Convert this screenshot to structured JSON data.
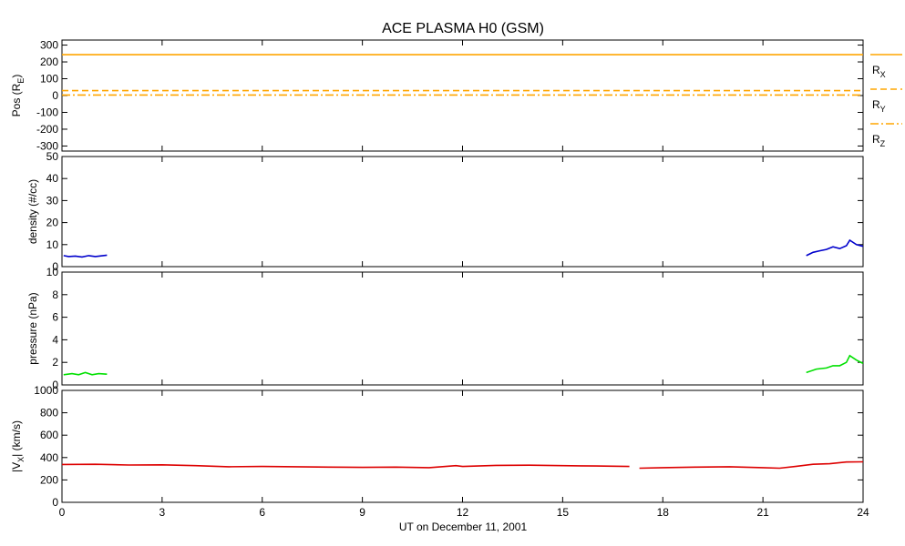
{
  "chart_data": {
    "title": "ACE PLASMA H0 (GSM)",
    "type": "line",
    "x_axis": {
      "label": "UT on December 11, 2001",
      "range": [
        0,
        24
      ],
      "ticks": [
        0,
        3,
        6,
        9,
        12,
        15,
        18,
        21,
        24
      ],
      "tick_labels": [
        "0",
        "3",
        "6",
        "9",
        "12",
        "15",
        "18",
        "21",
        "24"
      ],
      "unit": "hours"
    },
    "panels": [
      {
        "id": "pos",
        "ylabel_main": "Pos (R",
        "ylabel_sub": "E",
        "ylabel_end": ")",
        "ylim": [
          -330,
          330
        ],
        "yticks": [
          300,
          200,
          100,
          0,
          -100,
          -200,
          -300
        ],
        "ytick_labels": [
          "300",
          "200",
          "100",
          "0",
          "-100",
          "-200",
          "-300"
        ],
        "series": [
          {
            "name_main": "R",
            "name_sub": "X",
            "color": "#ffa500",
            "dash": "solid",
            "x": [
              0,
              24
            ],
            "y": [
              243,
              243
            ]
          },
          {
            "name_main": "R",
            "name_sub": "Y",
            "color": "#ffa500",
            "dash": "dashed",
            "x": [
              0,
              24
            ],
            "y": [
              29,
              29
            ]
          },
          {
            "name_main": "R",
            "name_sub": "Z",
            "color": "#ffa500",
            "dash": "dashdot",
            "x": [
              0,
              24
            ],
            "y": [
              3,
              3
            ]
          }
        ]
      },
      {
        "id": "density",
        "ylabel": "density (#/cc)",
        "ylim": [
          0,
          50
        ],
        "yticks": [
          50,
          40,
          30,
          20,
          10,
          0
        ],
        "ytick_labels": [
          "50",
          "40",
          "30",
          "20",
          "10",
          "0"
        ],
        "series": [
          {
            "name": "density",
            "color": "#0000cc",
            "segments": [
              {
                "x": [
                  0.05,
                  0.2,
                  0.4,
                  0.6,
                  0.8,
                  1.0,
                  1.2,
                  1.35
                ],
                "y": [
                  5.0,
                  4.6,
                  4.8,
                  4.4,
                  5.0,
                  4.6,
                  4.9,
                  5.2
                ]
              },
              {
                "x": [
                  22.3,
                  22.5,
                  22.7,
                  22.9,
                  23.1,
                  23.3,
                  23.5,
                  23.6,
                  23.8,
                  24.0
                ],
                "y": [
                  5.0,
                  6.5,
                  7.2,
                  7.8,
                  9.0,
                  8.2,
                  9.5,
                  12.0,
                  10.0,
                  9.2
                ]
              }
            ]
          }
        ]
      },
      {
        "id": "pressure",
        "ylabel": "pressure (nPa)",
        "ylim": [
          0,
          10
        ],
        "yticks": [
          10,
          8,
          6,
          4,
          2,
          0
        ],
        "ytick_labels": [
          "10",
          "8",
          "6",
          "4",
          "2",
          "0"
        ],
        "series": [
          {
            "name": "pressure",
            "color": "#00e000",
            "segments": [
              {
                "x": [
                  0.05,
                  0.3,
                  0.5,
                  0.7,
                  0.9,
                  1.1,
                  1.35
                ],
                "y": [
                  0.9,
                  1.0,
                  0.9,
                  1.1,
                  0.9,
                  1.0,
                  0.95
                ]
              },
              {
                "x": [
                  22.3,
                  22.6,
                  22.9,
                  23.1,
                  23.3,
                  23.5,
                  23.6,
                  23.8,
                  24.0
                ],
                "y": [
                  1.1,
                  1.4,
                  1.5,
                  1.7,
                  1.7,
                  2.0,
                  2.6,
                  2.2,
                  1.9
                ]
              }
            ]
          }
        ]
      },
      {
        "id": "vx",
        "ylabel_main": "|V",
        "ylabel_sub": "X",
        "ylabel_end": "| (km/s)",
        "ylim": [
          0,
          1000
        ],
        "yticks": [
          1000,
          800,
          600,
          400,
          200,
          0
        ],
        "ytick_labels": [
          "1000",
          "800",
          "600",
          "400",
          "200",
          "0"
        ],
        "series": [
          {
            "name": "|Vx|",
            "color": "#dd0000",
            "segments": [
              {
                "x": [
                  0,
                  1,
                  2,
                  3,
                  4,
                  5,
                  6,
                  7,
                  8,
                  9,
                  10,
                  11,
                  11.8,
                  12,
                  13,
                  14,
                  15,
                  16,
                  17
                ],
                "y": [
                  338,
                  340,
                  333,
                  335,
                  328,
                  318,
                  320,
                  318,
                  315,
                  312,
                  315,
                  310,
                  328,
                  320,
                  330,
                  332,
                  328,
                  324,
                  320
                ]
              },
              {
                "x": [
                  17.3,
                  18,
                  19,
                  20,
                  21,
                  21.5,
                  22,
                  22.5,
                  23,
                  23.5,
                  24
                ],
                "y": [
                  305,
                  310,
                  315,
                  318,
                  310,
                  305,
                  322,
                  340,
                  345,
                  360,
                  362
                ]
              }
            ]
          }
        ]
      }
    ]
  }
}
